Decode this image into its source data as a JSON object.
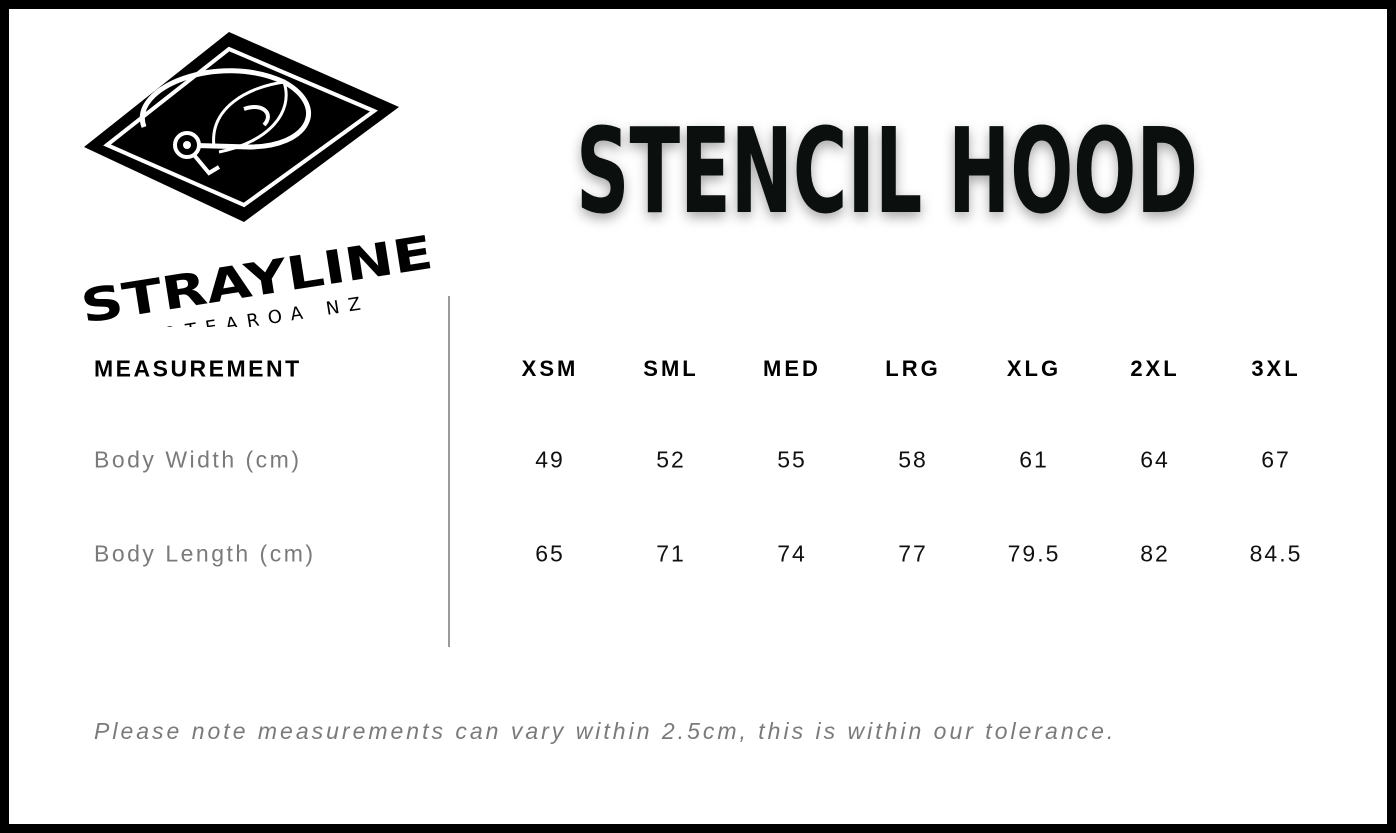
{
  "brand": {
    "name": "STRAYLINE",
    "tagline": "AOTEAROA NZ"
  },
  "title": "STENCIL HOOD",
  "table": {
    "header_label": "MEASUREMENT",
    "sizes": [
      "XSM",
      "SML",
      "MED",
      "LRG",
      "XLG",
      "2XL",
      "3XL"
    ],
    "rows": [
      {
        "label": "Body Width (cm)",
        "values": [
          "49",
          "52",
          "55",
          "58",
          "61",
          "64",
          "67"
        ]
      },
      {
        "label": "Body Length (cm)",
        "values": [
          "65",
          "71",
          "74",
          "77",
          "79.5",
          "82",
          "84.5"
        ]
      }
    ]
  },
  "note": "Please note measurements can vary within 2.5cm, this is within our tolerance."
}
